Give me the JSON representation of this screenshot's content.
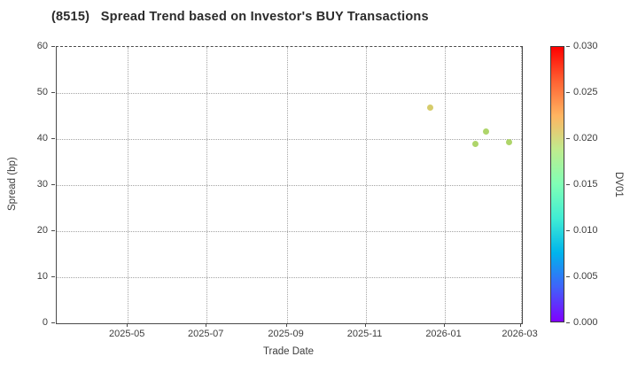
{
  "title": "(8515)   Spread Trend based on Investor's BUY Transactions",
  "chart_data": {
    "type": "scatter",
    "title": "(8515)   Spread Trend based on Investor's BUY Transactions",
    "xlabel": "Trade Date",
    "ylabel": "Spread (bp)",
    "x": {
      "label": "Trade Date",
      "min": "2025-03-07",
      "max": "2026-03-02",
      "tick_dates": [
        "2025-05-01",
        "2025-07-01",
        "2025-09-01",
        "2025-11-01",
        "2026-01-01",
        "2026-03-01"
      ],
      "tick_labels": [
        "2025-05",
        "2025-07",
        "2025-09",
        "2025-11",
        "2026-01",
        "2026-03"
      ]
    },
    "y": {
      "label": "Spread (bp)",
      "min": 0,
      "max": 60,
      "ticks": [
        0,
        10,
        20,
        30,
        40,
        50,
        60
      ]
    },
    "colorbar": {
      "label": "DV01",
      "min": 0.0,
      "max": 0.03,
      "tick_values": [
        0.0,
        0.005,
        0.01,
        0.015,
        0.02,
        0.025,
        0.03
      ],
      "tick_labels": [
        "0.000",
        "0.005",
        "0.010",
        "0.015",
        "0.020",
        "0.025",
        "0.030"
      ],
      "gradient_bottom_to_top": [
        "#8000ff",
        "#4062fa",
        "#00b4ec",
        "#40ecd4",
        "#80ffb5",
        "#bfec8e",
        "#ffb461",
        "#ff6232",
        "#ff0000"
      ]
    },
    "grid": true,
    "legend": false,
    "points": [
      {
        "date": "2025-12-21",
        "spread_bp": 46.8,
        "dv01_est": 0.02,
        "color": "#d6cc6b"
      },
      {
        "date": "2026-01-25",
        "spread_bp": 38.9,
        "dv01_est": 0.017,
        "color": "#aed56a"
      },
      {
        "date": "2026-02-02",
        "spread_bp": 41.7,
        "dv01_est": 0.017,
        "color": "#aed56a"
      },
      {
        "date": "2026-02-20",
        "spread_bp": 39.3,
        "dv01_est": 0.017,
        "color": "#aed56a"
      }
    ]
  },
  "style": {
    "grid_color": "#a4a4a4",
    "spine_color": "#4a4a4a",
    "text_color": "#3d3d3d",
    "title_color": "#2b2b2b",
    "background": "#ffffff"
  }
}
